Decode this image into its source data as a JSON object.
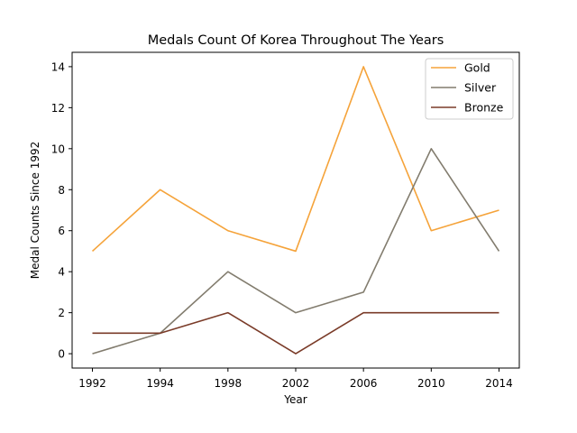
{
  "chart_data": {
    "type": "line",
    "title": "Medals Count Of Korea Throughout The Years",
    "xlabel": "Year",
    "ylabel": "Medal Counts Since 1992",
    "categories": [
      "1992",
      "1994",
      "1998",
      "2002",
      "2006",
      "2010",
      "2014"
    ],
    "ylim": [
      -0.7,
      14.7
    ],
    "yticks": [
      0,
      2,
      4,
      6,
      8,
      10,
      12,
      14
    ],
    "grid": false,
    "legend_position": "top-right",
    "series": [
      {
        "name": "Gold",
        "color": "#f5a33a",
        "values": [
          5,
          8,
          6,
          5,
          14,
          6,
          7
        ]
      },
      {
        "name": "Silver",
        "color": "#827c6e",
        "values": [
          0,
          1,
          4,
          2,
          3,
          10,
          5
        ]
      },
      {
        "name": "Bronze",
        "color": "#7a3b28",
        "values": [
          1,
          1,
          2,
          0,
          2,
          2,
          2
        ]
      }
    ]
  }
}
